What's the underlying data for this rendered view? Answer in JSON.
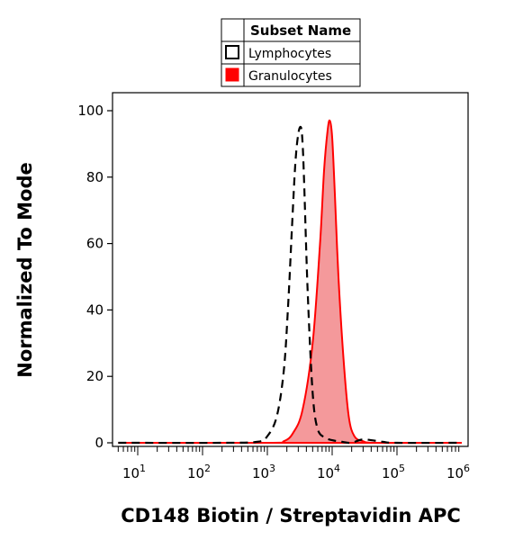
{
  "chart_data": {
    "type": "area",
    "xlabel": "CD148 Biotin / Streptavidin APC",
    "ylabel": "Normalized To Mode",
    "x_scale": "log",
    "xlim": [
      5,
      1000000
    ],
    "ylim": [
      0,
      100
    ],
    "y_ticks": [
      "0",
      "20",
      "40",
      "60",
      "80",
      "100"
    ],
    "x_ticks": [
      {
        "value": 10,
        "base": "10",
        "exp": "1"
      },
      {
        "value": 100,
        "base": "10",
        "exp": "2"
      },
      {
        "value": 1000,
        "base": "10",
        "exp": "3"
      },
      {
        "value": 10000,
        "base": "10",
        "exp": "4"
      },
      {
        "value": 100000,
        "base": "10",
        "exp": "5"
      },
      {
        "value": 1000000,
        "base": "10",
        "exp": "6"
      }
    ],
    "legend": {
      "header": "Subset Name",
      "placement": "top-center",
      "entries": [
        {
          "label": "Lymphocytes",
          "style": "dashed-outline"
        },
        {
          "label": "Granulocytes",
          "style": "filled-red"
        }
      ]
    },
    "series": [
      {
        "name": "Lymphocytes",
        "style": "dashed",
        "color": "#000000",
        "x": [
          5,
          200,
          700,
          1000,
          1400,
          1800,
          2100,
          2400,
          2700,
          3000,
          3300,
          3500,
          3700,
          4200,
          5000,
          6000,
          8000,
          10000,
          14000,
          20000,
          30000,
          60000,
          100000,
          1000000
        ],
        "y": [
          0,
          0,
          0.3,
          2,
          8,
          22,
          42,
          65,
          84,
          93,
          95,
          90,
          78,
          45,
          15,
          4,
          1.5,
          0.8,
          0.3,
          0,
          1,
          0.3,
          0,
          0
        ]
      },
      {
        "name": "Granulocytes",
        "style": "filled",
        "color": "#ff0000",
        "fill": "#f4999b",
        "x": [
          5,
          1000,
          1800,
          2500,
          3500,
          5000,
          6500,
          7500,
          8500,
          9200,
          10000,
          11000,
          12500,
          15000,
          18000,
          22000,
          30000,
          50000,
          1000000
        ],
        "y": [
          0,
          0,
          0.5,
          3,
          10,
          30,
          60,
          82,
          94,
          97,
          92,
          75,
          50,
          25,
          8,
          2,
          0.5,
          0,
          0
        ]
      }
    ]
  }
}
